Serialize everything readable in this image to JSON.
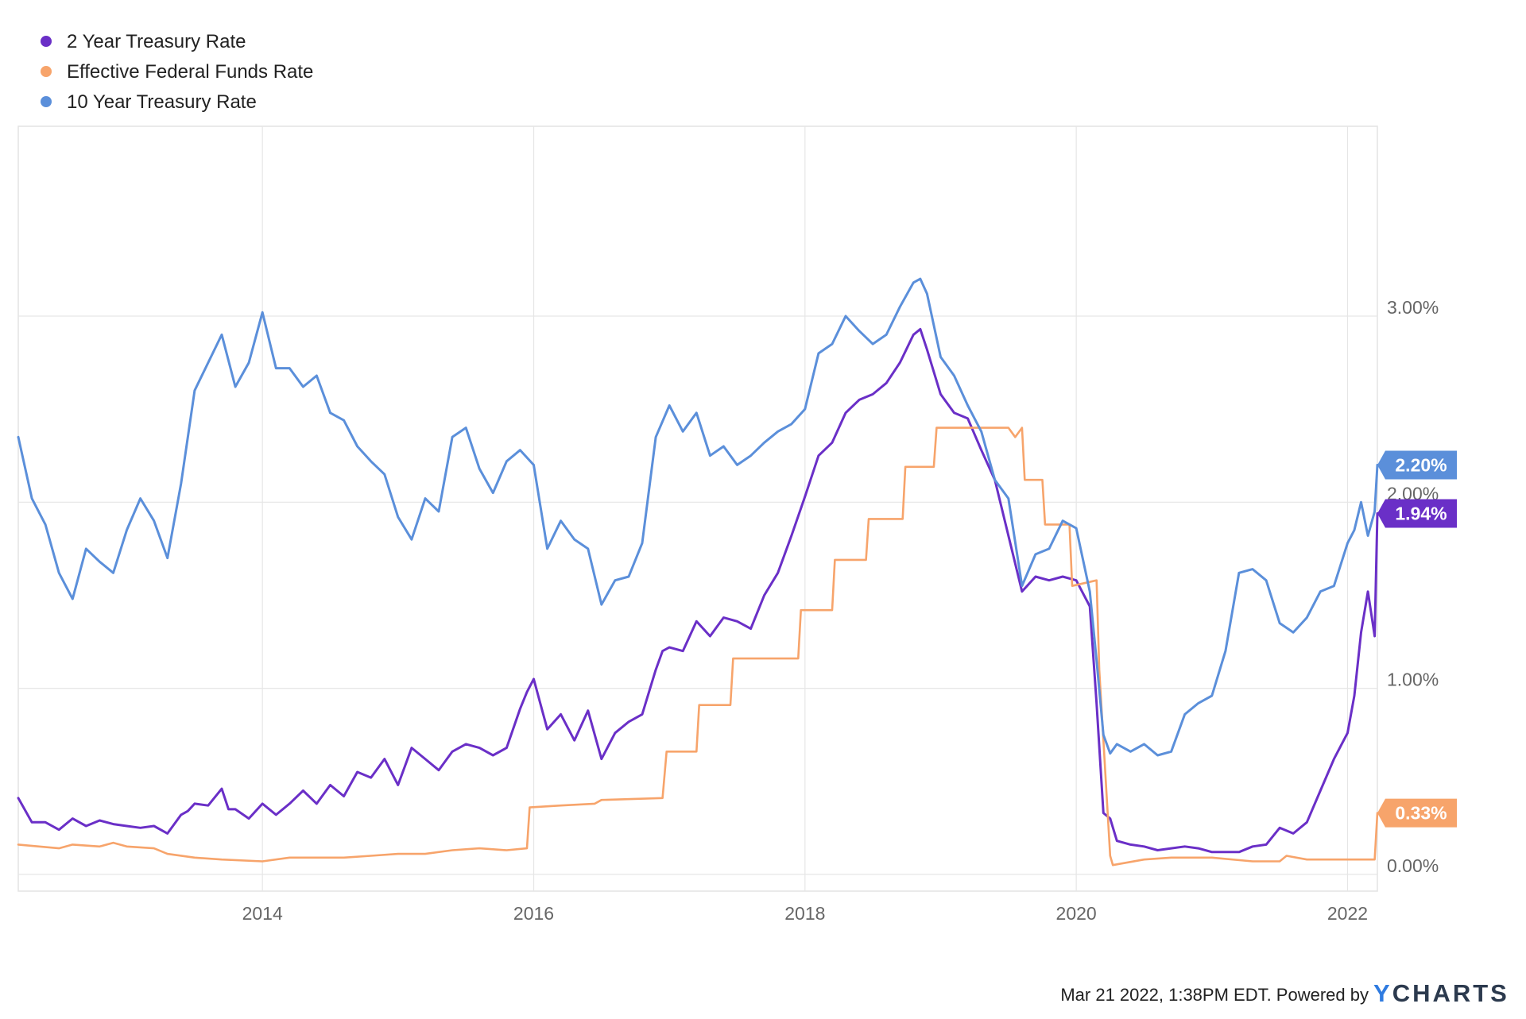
{
  "chart_data": {
    "type": "line",
    "title": "",
    "xlabel": "",
    "ylabel": "",
    "xlim": [
      2012.2,
      2022.22
    ],
    "ylim": [
      -0.09,
      4.02
    ],
    "grid": true,
    "legend_position": "top-left",
    "x_ticks": [
      {
        "value": 2014,
        "label": "2014"
      },
      {
        "value": 2016,
        "label": "2016"
      },
      {
        "value": 2018,
        "label": "2018"
      },
      {
        "value": 2020,
        "label": "2020"
      },
      {
        "value": 2022,
        "label": "2022"
      }
    ],
    "y_ticks": [
      {
        "value": 0,
        "label": "0.00%"
      },
      {
        "value": 1,
        "label": "1.00%"
      },
      {
        "value": 2,
        "label": "2.00%"
      },
      {
        "value": 3,
        "label": "3.00%"
      }
    ],
    "series": [
      {
        "name": "2 Year Treasury Rate",
        "color": "#6a2fc7",
        "last_label": "1.94%",
        "last_value": 1.94,
        "x": [
          2012.2,
          2012.3,
          2012.4,
          2012.5,
          2012.6,
          2012.7,
          2012.8,
          2012.9,
          2013.0,
          2013.1,
          2013.2,
          2013.3,
          2013.4,
          2013.45,
          2013.5,
          2013.6,
          2013.7,
          2013.75,
          2013.8,
          2013.9,
          2014.0,
          2014.1,
          2014.2,
          2014.3,
          2014.4,
          2014.5,
          2014.6,
          2014.7,
          2014.8,
          2014.9,
          2015.0,
          2015.1,
          2015.2,
          2015.3,
          2015.4,
          2015.5,
          2015.6,
          2015.7,
          2015.8,
          2015.9,
          2015.95,
          2016.0,
          2016.1,
          2016.2,
          2016.3,
          2016.4,
          2016.5,
          2016.6,
          2016.7,
          2016.8,
          2016.9,
          2016.95,
          2017.0,
          2017.1,
          2017.2,
          2017.3,
          2017.4,
          2017.5,
          2017.6,
          2017.7,
          2017.8,
          2017.9,
          2018.0,
          2018.1,
          2018.2,
          2018.3,
          2018.4,
          2018.5,
          2018.6,
          2018.7,
          2018.8,
          2018.85,
          2018.9,
          2019.0,
          2019.1,
          2019.2,
          2019.3,
          2019.4,
          2019.5,
          2019.6,
          2019.7,
          2019.8,
          2019.9,
          2020.0,
          2020.1,
          2020.15,
          2020.2,
          2020.25,
          2020.3,
          2020.4,
          2020.5,
          2020.6,
          2020.7,
          2020.8,
          2020.9,
          2021.0,
          2021.1,
          2021.2,
          2021.3,
          2021.4,
          2021.5,
          2021.6,
          2021.7,
          2021.8,
          2021.9,
          2022.0,
          2022.05,
          2022.1,
          2022.15,
          2022.2,
          2022.22
        ],
        "values": [
          0.41,
          0.28,
          0.28,
          0.24,
          0.3,
          0.26,
          0.29,
          0.27,
          0.26,
          0.25,
          0.26,
          0.22,
          0.32,
          0.34,
          0.38,
          0.37,
          0.46,
          0.35,
          0.35,
          0.3,
          0.38,
          0.32,
          0.38,
          0.45,
          0.38,
          0.48,
          0.42,
          0.55,
          0.52,
          0.62,
          0.48,
          0.68,
          0.62,
          0.56,
          0.66,
          0.7,
          0.68,
          0.64,
          0.68,
          0.89,
          0.98,
          1.05,
          0.78,
          0.86,
          0.72,
          0.88,
          0.62,
          0.76,
          0.82,
          0.86,
          1.1,
          1.2,
          1.22,
          1.2,
          1.36,
          1.28,
          1.38,
          1.36,
          1.32,
          1.5,
          1.62,
          1.82,
          2.03,
          2.25,
          2.32,
          2.48,
          2.55,
          2.58,
          2.64,
          2.75,
          2.9,
          2.93,
          2.82,
          2.58,
          2.48,
          2.45,
          2.28,
          2.12,
          1.82,
          1.52,
          1.6,
          1.58,
          1.6,
          1.58,
          1.44,
          0.92,
          0.33,
          0.3,
          0.18,
          0.16,
          0.15,
          0.13,
          0.14,
          0.15,
          0.14,
          0.12,
          0.12,
          0.12,
          0.15,
          0.16,
          0.25,
          0.22,
          0.28,
          0.45,
          0.62,
          0.76,
          0.96,
          1.3,
          1.52,
          1.28,
          1.94
        ]
      },
      {
        "name": "Effective Federal Funds Rate",
        "color": "#f7a46b",
        "last_label": "0.33%",
        "last_value": 0.33,
        "x": [
          2012.2,
          2012.5,
          2012.6,
          2012.8,
          2012.9,
          2013.0,
          2013.2,
          2013.3,
          2013.5,
          2013.7,
          2014.0,
          2014.2,
          2014.4,
          2014.6,
          2014.8,
          2015.0,
          2015.2,
          2015.4,
          2015.6,
          2015.8,
          2015.95,
          2015.97,
          2016.2,
          2016.45,
          2016.5,
          2016.95,
          2016.98,
          2017.2,
          2017.22,
          2017.45,
          2017.47,
          2017.95,
          2017.97,
          2018.2,
          2018.22,
          2018.45,
          2018.47,
          2018.72,
          2018.74,
          2018.95,
          2018.97,
          2019.3,
          2019.5,
          2019.55,
          2019.6,
          2019.62,
          2019.75,
          2019.77,
          2019.95,
          2019.97,
          2020.15,
          2020.17,
          2020.25,
          2020.27,
          2020.5,
          2020.7,
          2021.0,
          2021.3,
          2021.5,
          2021.55,
          2021.7,
          2022.0,
          2022.2,
          2022.22
        ],
        "values": [
          0.16,
          0.14,
          0.16,
          0.15,
          0.17,
          0.15,
          0.14,
          0.11,
          0.09,
          0.08,
          0.07,
          0.09,
          0.09,
          0.09,
          0.1,
          0.11,
          0.11,
          0.13,
          0.14,
          0.13,
          0.14,
          0.36,
          0.37,
          0.38,
          0.4,
          0.41,
          0.66,
          0.66,
          0.91,
          0.91,
          1.16,
          1.16,
          1.42,
          1.42,
          1.69,
          1.69,
          1.91,
          1.91,
          2.19,
          2.19,
          2.4,
          2.4,
          2.4,
          2.35,
          2.4,
          2.12,
          2.12,
          1.88,
          1.88,
          1.55,
          1.58,
          1.1,
          0.1,
          0.05,
          0.08,
          0.09,
          0.09,
          0.07,
          0.07,
          0.1,
          0.08,
          0.08,
          0.08,
          0.33
        ]
      },
      {
        "name": "10 Year Treasury Rate",
        "color": "#5b8fda",
        "last_label": "2.20%",
        "last_value": 2.2,
        "x": [
          2012.2,
          2012.3,
          2012.4,
          2012.5,
          2012.6,
          2012.7,
          2012.8,
          2012.9,
          2013.0,
          2013.1,
          2013.2,
          2013.3,
          2013.4,
          2013.5,
          2013.6,
          2013.7,
          2013.8,
          2013.9,
          2014.0,
          2014.1,
          2014.2,
          2014.3,
          2014.4,
          2014.5,
          2014.6,
          2014.7,
          2014.8,
          2014.9,
          2015.0,
          2015.1,
          2015.2,
          2015.3,
          2015.4,
          2015.5,
          2015.6,
          2015.7,
          2015.8,
          2015.9,
          2016.0,
          2016.1,
          2016.2,
          2016.3,
          2016.4,
          2016.5,
          2016.6,
          2016.7,
          2016.8,
          2016.9,
          2017.0,
          2017.1,
          2017.2,
          2017.3,
          2017.4,
          2017.5,
          2017.6,
          2017.7,
          2017.8,
          2017.9,
          2018.0,
          2018.1,
          2018.2,
          2018.3,
          2018.4,
          2018.5,
          2018.6,
          2018.7,
          2018.8,
          2018.85,
          2018.9,
          2019.0,
          2019.1,
          2019.2,
          2019.3,
          2019.4,
          2019.5,
          2019.6,
          2019.7,
          2019.8,
          2019.9,
          2020.0,
          2020.1,
          2020.15,
          2020.2,
          2020.25,
          2020.3,
          2020.4,
          2020.5,
          2020.6,
          2020.7,
          2020.8,
          2020.9,
          2021.0,
          2021.1,
          2021.2,
          2021.3,
          2021.4,
          2021.5,
          2021.6,
          2021.7,
          2021.8,
          2021.9,
          2022.0,
          2022.05,
          2022.1,
          2022.15,
          2022.2,
          2022.22
        ],
        "values": [
          2.35,
          2.02,
          1.88,
          1.62,
          1.48,
          1.75,
          1.68,
          1.62,
          1.85,
          2.02,
          1.9,
          1.7,
          2.1,
          2.6,
          2.75,
          2.9,
          2.62,
          2.75,
          3.02,
          2.72,
          2.72,
          2.62,
          2.68,
          2.48,
          2.44,
          2.3,
          2.22,
          2.15,
          1.92,
          1.8,
          2.02,
          1.95,
          2.35,
          2.4,
          2.18,
          2.05,
          2.22,
          2.28,
          2.2,
          1.75,
          1.9,
          1.8,
          1.75,
          1.45,
          1.58,
          1.6,
          1.78,
          2.35,
          2.52,
          2.38,
          2.48,
          2.25,
          2.3,
          2.2,
          2.25,
          2.32,
          2.38,
          2.42,
          2.5,
          2.8,
          2.85,
          3.0,
          2.92,
          2.85,
          2.9,
          3.05,
          3.18,
          3.2,
          3.12,
          2.78,
          2.68,
          2.52,
          2.38,
          2.12,
          2.02,
          1.55,
          1.72,
          1.75,
          1.9,
          1.86,
          1.52,
          1.15,
          0.75,
          0.65,
          0.7,
          0.66,
          0.7,
          0.64,
          0.66,
          0.86,
          0.92,
          0.96,
          1.2,
          1.62,
          1.64,
          1.58,
          1.35,
          1.3,
          1.38,
          1.52,
          1.55,
          1.78,
          1.85,
          2.0,
          1.82,
          1.95,
          2.2
        ]
      }
    ]
  },
  "footer": {
    "timestamp_text": "Mar 21 2022, 1:38PM EDT.  Powered by",
    "brand_y": "Y",
    "brand_rest": "CHARTS"
  }
}
